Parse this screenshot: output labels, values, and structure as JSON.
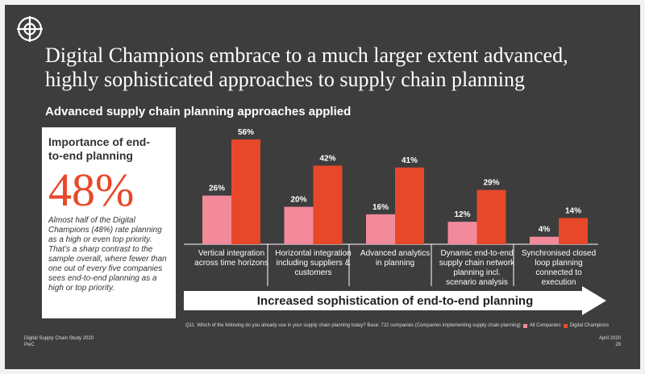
{
  "slide": {
    "title_lines": [
      "Digital Champions embrace to a much larger extent advanced,",
      "highly sophisticated approaches to supply chain planning"
    ],
    "subtitle": "Advanced supply chain planning approaches applied",
    "highlight": {
      "heading": "Importance of end-to-end planning",
      "figure": "48%",
      "text": "Almost half of the Digital Champions (48%) rate planning as a high or even top priority. That’s a sharp contrast to the sample overall, where fewer than one out of every five companies sees end-to-end planning as a high or top priority."
    },
    "arrow_label": "Increased sophistication of end-to-end planning",
    "footnote": "Q11. Which of the following do you already use in your supply chain planning today? Base: 722 companies (Companies implementing supply chain planning)",
    "footer": {
      "left": [
        "Digital Supply Chain Study 2020",
        "PwC"
      ],
      "right": [
        "April 2020",
        "28"
      ]
    }
  },
  "chart_data": {
    "type": "bar",
    "categories": [
      "Vertical integration across time horizons",
      "Horizontal integration including suppliers & customers",
      "Advanced analytics in planning",
      "Dynamic end-to-end supply chain network planning incl. scenario analysis",
      "Synchronised closed loop planning connected to execution"
    ],
    "series": [
      {
        "name": "All Companies",
        "color": "#f28a9c",
        "values": [
          26,
          20,
          16,
          12,
          4
        ],
        "value_labels": [
          "26%",
          "20%",
          "16%",
          "12%",
          "4%"
        ]
      },
      {
        "name": "Digital Champions",
        "color": "#e8482a",
        "values": [
          56,
          42,
          41,
          29,
          14
        ],
        "value_labels": [
          "56%",
          "42%",
          "41%",
          "29%",
          "14%"
        ]
      }
    ]
  }
}
